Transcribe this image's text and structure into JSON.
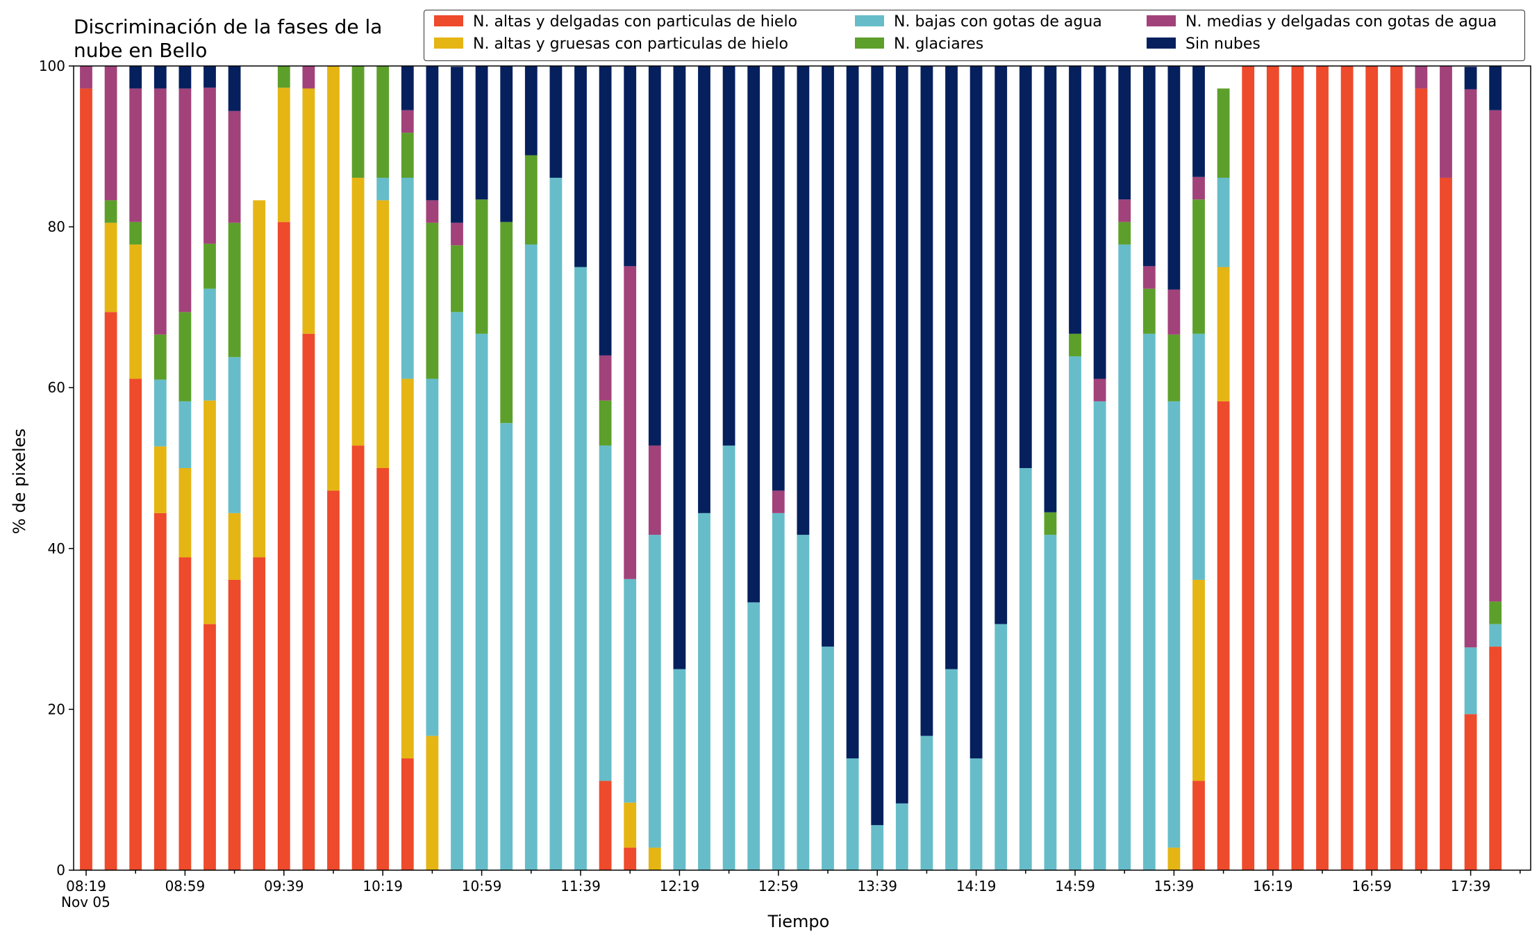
{
  "chart_data": {
    "type": "bar",
    "stacked": true,
    "title": "Discriminación de la fases de la\nnube en Bello",
    "xlabel": "Tiempo",
    "ylabel": "% de pixeles",
    "ylim": [
      0,
      100
    ],
    "yticks": [
      0,
      20,
      40,
      60,
      80,
      100
    ],
    "x_tick_labels": [
      "08:19",
      "08:59",
      "09:39",
      "10:19",
      "10:59",
      "11:39",
      "12:19",
      "12:59",
      "13:39",
      "14:19",
      "14:59",
      "15:39",
      "16:19",
      "16:59",
      "17:39"
    ],
    "x_sublabel": "Nov 05",
    "start_time": "08:19",
    "interval_minutes": 10,
    "legend_position": "top",
    "series": [
      {
        "name": "N. altas y delgadas con particulas de hielo",
        "color": "#ee4a2c",
        "values": [
          97.2,
          69.4,
          61.1,
          44.4,
          38.9,
          30.6,
          36.1,
          38.9,
          80.6,
          66.7,
          47.2,
          52.8,
          50,
          13.9,
          0,
          0,
          0,
          0,
          0,
          0,
          0,
          11.1,
          2.8,
          0,
          0,
          0,
          0,
          0,
          0,
          0,
          0,
          0,
          0,
          0,
          0,
          0,
          0,
          0,
          0,
          0,
          0,
          0,
          0,
          0,
          0,
          11.1,
          58.3,
          100,
          100,
          100,
          100,
          100,
          100,
          100,
          97.2,
          86.1,
          19.4,
          27.8
        ]
      },
      {
        "name": "N. altas y gruesas con particulas de hielo",
        "color": "#e5b514",
        "values": [
          0,
          11.1,
          16.7,
          8.3,
          11.1,
          27.8,
          8.3,
          44.4,
          16.7,
          30.5,
          52.8,
          33.3,
          33.3,
          47.2,
          16.7,
          0,
          0,
          0,
          0,
          0,
          0,
          0,
          5.6,
          2.8,
          0,
          0,
          0,
          0,
          0,
          0,
          0,
          0,
          0,
          0,
          0,
          0,
          0,
          0,
          0,
          0,
          0,
          0,
          0,
          0,
          2.8,
          25,
          16.7,
          0,
          0,
          0,
          0,
          0,
          0,
          0,
          0,
          0,
          0,
          0
        ]
      },
      {
        "name": "N. bajas con gotas de agua",
        "color": "#66bdc9",
        "values": [
          0,
          0,
          0,
          8.3,
          8.3,
          13.9,
          19.4,
          0,
          0,
          0,
          0,
          0,
          2.8,
          25,
          44.4,
          69.4,
          66.7,
          55.6,
          77.8,
          86.1,
          75,
          41.7,
          27.8,
          38.9,
          25,
          44.4,
          52.8,
          33.3,
          44.4,
          41.7,
          27.8,
          13.9,
          5.6,
          8.3,
          16.7,
          25,
          13.9,
          30.6,
          50,
          41.7,
          63.9,
          58.3,
          77.8,
          66.7,
          55.5,
          30.6,
          11.1,
          0,
          0,
          0,
          0,
          0,
          0,
          0,
          0,
          0,
          8.3,
          2.8
        ]
      },
      {
        "name": "N. glaciares",
        "color": "#5d9f2b",
        "values": [
          0,
          2.8,
          2.8,
          5.6,
          11.1,
          5.6,
          16.7,
          0,
          2.8,
          0,
          0,
          13.9,
          13.9,
          5.6,
          19.4,
          8.3,
          16.7,
          25,
          11.1,
          0,
          0,
          5.6,
          0,
          0,
          0,
          0,
          0,
          0,
          0,
          0,
          0,
          0,
          0,
          0,
          0,
          0,
          0,
          0,
          0,
          2.8,
          2.8,
          0,
          2.8,
          5.6,
          8.3,
          16.7,
          11.1,
          0,
          0,
          0,
          0,
          0,
          0,
          0,
          0,
          0,
          0,
          2.8
        ]
      },
      {
        "name": "N. medias y delgadas con gotas de agua",
        "color": "#a2427a",
        "values": [
          2.8,
          16.7,
          16.6,
          30.6,
          27.8,
          19.4,
          13.9,
          0,
          0,
          2.8,
          0,
          0,
          0,
          2.8,
          2.8,
          2.8,
          0,
          0,
          0,
          0,
          0,
          5.6,
          38.9,
          11.1,
          0,
          0,
          0,
          0,
          2.8,
          0,
          0,
          0,
          0,
          0,
          0,
          0,
          0,
          0,
          0,
          0,
          0,
          2.8,
          2.8,
          2.8,
          5.6,
          2.8,
          0,
          0,
          0,
          0,
          0,
          0,
          0,
          0,
          2.8,
          13.9,
          69.4,
          61.1
        ]
      },
      {
        "name": "Sin nubes",
        "color": "#06205e",
        "values": [
          0,
          0,
          2.8,
          2.8,
          2.8,
          2.8,
          5.6,
          0,
          0,
          0,
          0,
          0,
          0,
          5.6,
          16.7,
          19.4,
          16.7,
          19.4,
          11.1,
          13.9,
          25,
          36.1,
          25,
          47.2,
          75,
          55.6,
          47.2,
          66.7,
          52.8,
          58.3,
          72.2,
          86.1,
          94.4,
          91.7,
          83.3,
          75,
          86.1,
          69.4,
          50,
          55.5,
          33.3,
          38.9,
          16.7,
          25,
          27.8,
          13.9,
          0,
          0,
          0,
          0,
          0,
          0,
          0,
          0,
          0,
          0,
          2.8,
          5.5
        ]
      }
    ]
  }
}
